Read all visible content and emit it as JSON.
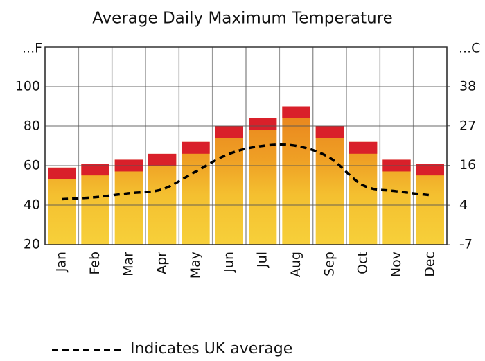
{
  "chart_data": {
    "type": "bar",
    "title": "Average Daily Maximum Temperature",
    "ylabel": "...F",
    "y2label": "...C",
    "categories": [
      "Jan",
      "Feb",
      "Mar",
      "Apr",
      "May",
      "Jun",
      "Jul",
      "Aug",
      "Sep",
      "Oct",
      "Nov",
      "Dec"
    ],
    "values": [
      59,
      61,
      63,
      66,
      72,
      80,
      84,
      90,
      80,
      72,
      63,
      61
    ],
    "color": "#f5c431",
    "ylim": [
      20,
      120
    ],
    "yticks": [
      20,
      40,
      60,
      80,
      100
    ],
    "y2lim": [
      -6.7,
      48.9
    ],
    "y2ticks": [
      {
        "value": -6.7,
        "label": "-7"
      },
      {
        "value": 4.4,
        "label": "4"
      },
      {
        "value": 15.6,
        "label": "16"
      },
      {
        "value": 26.7,
        "label": "27"
      },
      {
        "value": 37.8,
        "label": "38"
      }
    ],
    "grid": true,
    "line_series": {
      "name": "Indicates UK average",
      "color": "#000000",
      "values": [
        43,
        44,
        46,
        48,
        57,
        66,
        70,
        70,
        64,
        50,
        47,
        45
      ]
    }
  }
}
